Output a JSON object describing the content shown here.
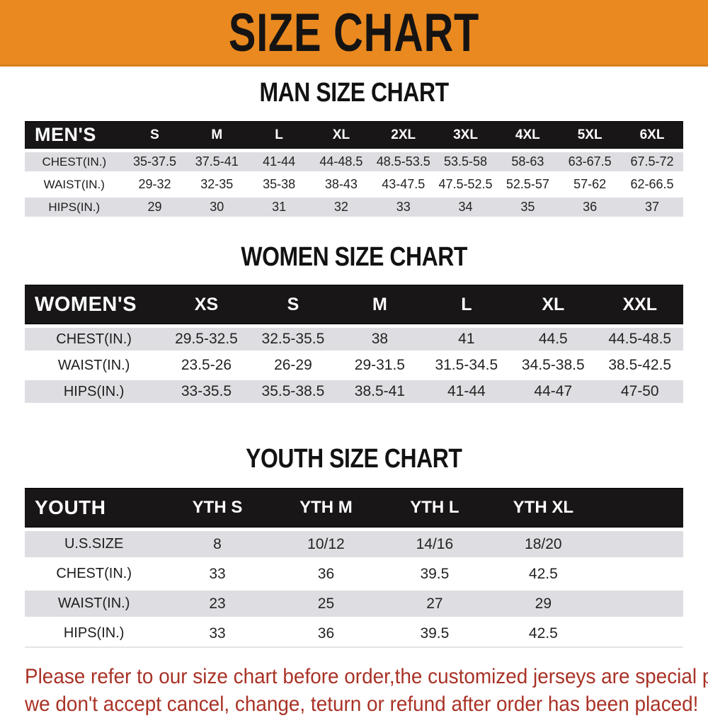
{
  "banner": {
    "title": "SIZE CHART"
  },
  "colors": {
    "banner_bg": "#E9891F",
    "banner_text": "#161313",
    "header_bg": "#191617",
    "header_text": "#FFFFFF",
    "stripe_gray": "#DEDEE2",
    "stripe_white": "#FFFFFF",
    "cell_text": "#232323",
    "footer_red": "#A93226"
  },
  "tables": {
    "men": {
      "section_title": "MAN SIZE CHART",
      "header_label": "MEN'S",
      "columns": [
        "S",
        "M",
        "L",
        "XL",
        "2XL",
        "3XL",
        "4XL",
        "5XL",
        "6XL"
      ],
      "rows": [
        {
          "label": "CHEST(IN.)",
          "values": [
            "35-37.5",
            "37.5-41",
            "41-44",
            "44-48.5",
            "48.5-53.5",
            "53.5-58",
            "58-63",
            "63-67.5",
            "67.5-72"
          ]
        },
        {
          "label": "WAIST(IN.)",
          "values": [
            "29-32",
            "32-35",
            "35-38",
            "38-43",
            "43-47.5",
            "47.5-52.5",
            "52.5-57",
            "57-62",
            "62-66.5"
          ]
        },
        {
          "label": "HIPS(IN.)",
          "values": [
            "29",
            "30",
            "31",
            "32",
            "33",
            "34",
            "35",
            "36",
            "37"
          ]
        }
      ]
    },
    "women": {
      "section_title": "WOMEN SIZE CHART",
      "header_label": "WOMEN'S",
      "columns": [
        "XS",
        "S",
        "M",
        "L",
        "XL",
        "XXL"
      ],
      "rows": [
        {
          "label": "CHEST(IN.)",
          "values": [
            "29.5-32.5",
            "32.5-35.5",
            "38",
            "41",
            "44.5",
            "44.5-48.5"
          ]
        },
        {
          "label": "WAIST(IN.)",
          "values": [
            "23.5-26",
            "26-29",
            "29-31.5",
            "31.5-34.5",
            "34.5-38.5",
            "38.5-42.5"
          ]
        },
        {
          "label": "HIPS(IN.)",
          "values": [
            "33-35.5",
            "35.5-38.5",
            "38.5-41",
            "41-44",
            "44-47",
            "47-50"
          ]
        }
      ]
    },
    "youth": {
      "section_title": "YOUTH SIZE CHART",
      "header_label": "YOUTH",
      "columns": [
        "YTH S",
        "YTH M",
        "YTH L",
        "YTH XL"
      ],
      "rows": [
        {
          "label": "U.S.SIZE",
          "values": [
            "8",
            "10/12",
            "14/16",
            "18/20"
          ]
        },
        {
          "label": "CHEST(IN.)",
          "values": [
            "33",
            "36",
            "39.5",
            "42.5"
          ]
        },
        {
          "label": "WAIST(IN.)",
          "values": [
            "23",
            "25",
            "27",
            "29"
          ]
        },
        {
          "label": "HIPS(IN.)",
          "values": [
            "33",
            "36",
            "39.5",
            "42.5"
          ]
        }
      ]
    }
  },
  "footer": {
    "lines": [
      "Please refer to our size chart before order,the customized jerseys are special products,",
      "we don't accept cancel, change, teturn or refund after order has been placed!"
    ]
  }
}
